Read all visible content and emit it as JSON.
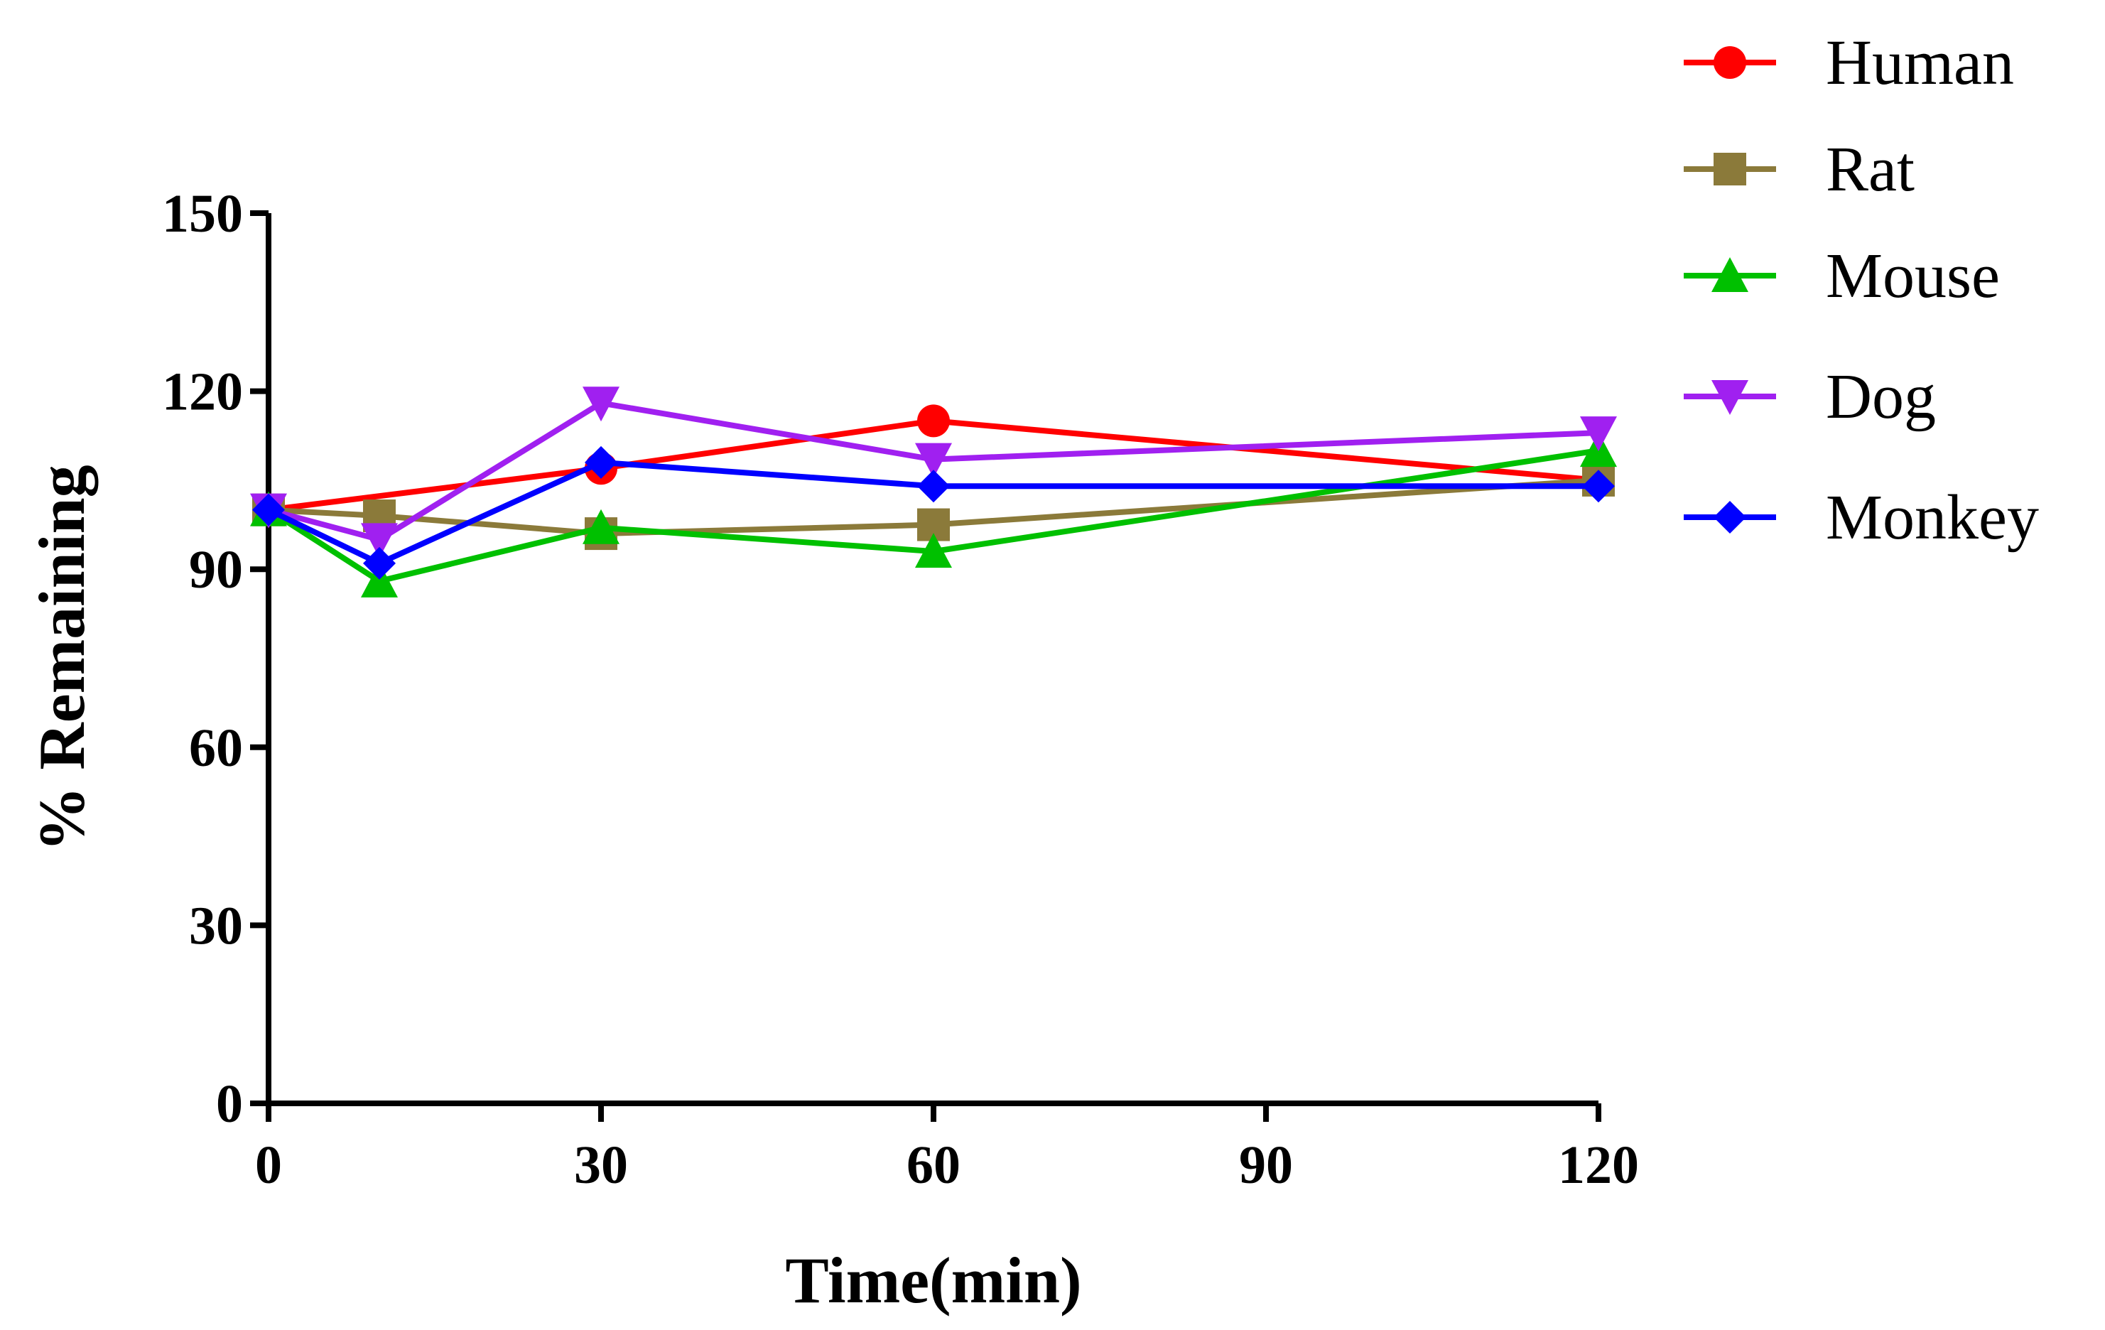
{
  "chart_data": {
    "type": "line",
    "title": "",
    "xlabel": "Time(min)",
    "ylabel": "% Remaining",
    "xlim": [
      0,
      120
    ],
    "ylim": [
      0,
      150
    ],
    "xticks": [
      0,
      30,
      60,
      90,
      120
    ],
    "yticks": [
      0,
      30,
      60,
      90,
      120,
      150
    ],
    "grid": false,
    "legend_position": "top-right",
    "series": [
      {
        "name": "Human",
        "color": "#ff0000",
        "marker": "circle",
        "x": [
          0,
          30,
          60,
          120
        ],
        "y": [
          100,
          107,
          115,
          105
        ]
      },
      {
        "name": "Rat",
        "color": "#8b7a3a",
        "marker": "square",
        "x": [
          0,
          10,
          30,
          60,
          120
        ],
        "y": [
          100,
          99,
          96,
          97.5,
          105
        ]
      },
      {
        "name": "Mouse",
        "color": "#00c000",
        "marker": "triangle-up",
        "x": [
          0,
          10,
          30,
          60,
          120
        ],
        "y": [
          100,
          88,
          97,
          93,
          110
        ]
      },
      {
        "name": "Dog",
        "color": "#a020f0",
        "marker": "triangle-down",
        "x": [
          0,
          10,
          30,
          60,
          120
        ],
        "y": [
          100,
          95,
          118,
          108.5,
          113
        ]
      },
      {
        "name": "Monkey",
        "color": "#0000ff",
        "marker": "diamond",
        "x": [
          0,
          10,
          30,
          60,
          120
        ],
        "y": [
          100,
          91,
          108,
          104,
          104
        ]
      }
    ]
  }
}
